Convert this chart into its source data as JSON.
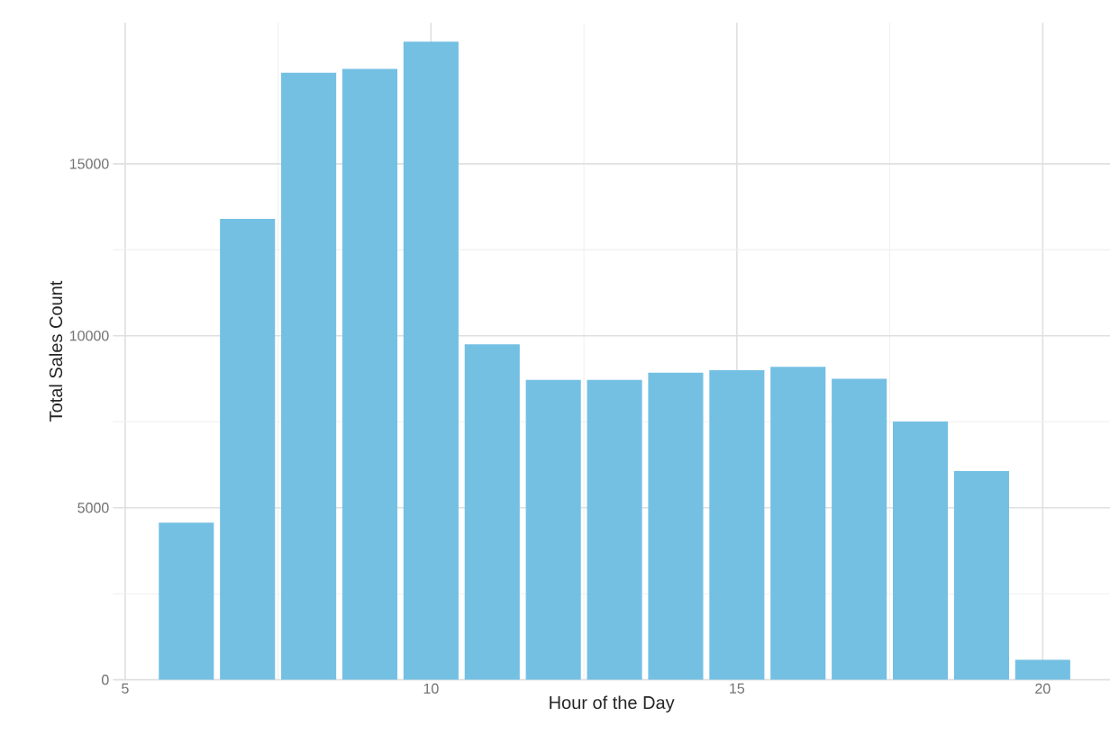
{
  "chart_data": {
    "type": "bar",
    "xlabel": "Hour of the Day",
    "ylabel": "Total Sales Count",
    "x": [
      6,
      7,
      8,
      9,
      10,
      11,
      12,
      13,
      14,
      15,
      16,
      17,
      18,
      19,
      20
    ],
    "values": [
      4570,
      13400,
      17650,
      17760,
      18550,
      9750,
      8720,
      8720,
      8930,
      9000,
      9100,
      8750,
      7510,
      6070,
      580
    ],
    "color": "#74c0e3",
    "xlim": [
      4.8,
      21.1
    ],
    "ylim": [
      0,
      19100
    ],
    "xticks": [
      5,
      10,
      15,
      20
    ],
    "yticks": [
      0,
      5000,
      10000,
      15000
    ],
    "grid": true
  }
}
